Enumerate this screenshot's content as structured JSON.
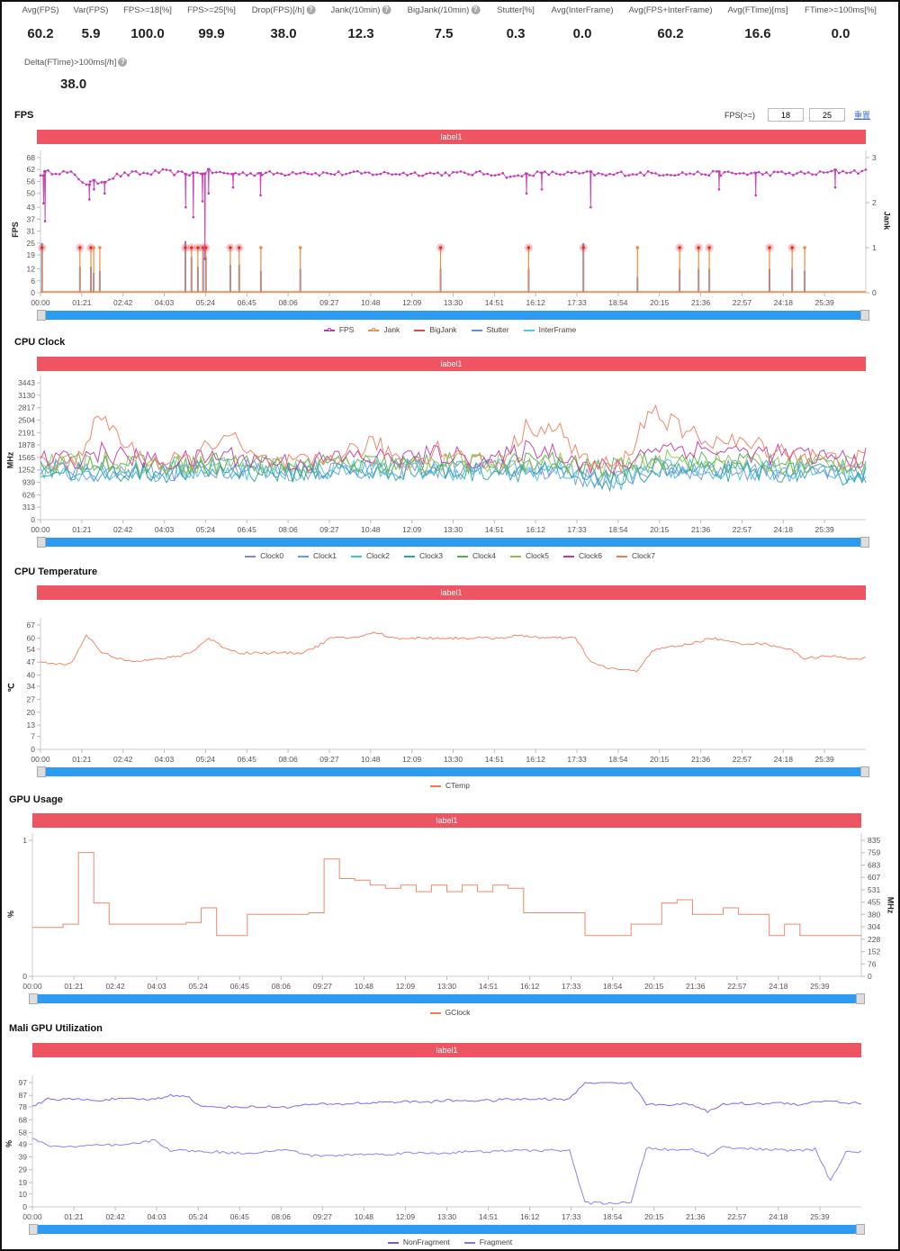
{
  "stats": [
    {
      "label": "Avg(FPS)",
      "value": "60.2",
      "help": false
    },
    {
      "label": "Var(FPS)",
      "value": "5.9",
      "help": false
    },
    {
      "label": "FPS>=18[%]",
      "value": "100.0",
      "help": false
    },
    {
      "label": "FPS>=25[%]",
      "value": "99.9",
      "help": false
    },
    {
      "label": "Drop(FPS)[/h]",
      "value": "38.0",
      "help": true
    },
    {
      "label": "Jank(/10min)",
      "value": "12.3",
      "help": true
    },
    {
      "label": "BigJank(/10min)",
      "value": "7.5",
      "help": true
    },
    {
      "label": "Stutter[%]",
      "value": "0.3",
      "help": false
    },
    {
      "label": "Avg(InterFrame)",
      "value": "0.0",
      "help": false
    },
    {
      "label": "Avg(FPS+InterFrame)",
      "value": "60.2",
      "help": false
    },
    {
      "label": "Avg(FTime)[ms]",
      "value": "16.6",
      "help": false
    },
    {
      "label": "FTime>=100ms[%]",
      "value": "0.0",
      "help": false
    },
    {
      "label": "Delta(FTime)>100ms[/h]",
      "value": "38.0",
      "help": true
    }
  ],
  "help_glyph": "?",
  "fps_filter": {
    "label": "FPS(>=)",
    "value1": "18",
    "value2": "25",
    "reset": "重置"
  },
  "label_bar": "label1",
  "x_ticks": [
    "00:00",
    "01:21",
    "02:42",
    "04:03",
    "05:24",
    "06:45",
    "08:06",
    "09:27",
    "10:48",
    "12:09",
    "13:30",
    "14:51",
    "16:12",
    "17:33",
    "18:54",
    "20:15",
    "21:36",
    "22:57",
    "24:18",
    "25:39"
  ],
  "x_max_min": 27,
  "chart_data": [
    {
      "id": "fps",
      "title": "FPS",
      "type": "line",
      "ylabel": "FPS",
      "ylabel_right": "Jank",
      "ylim": [
        0,
        68
      ],
      "ylim_right": [
        0,
        3
      ],
      "y_ticks": [
        "0",
        "6",
        "12",
        "19",
        "25",
        "31",
        "37",
        "43",
        "50",
        "56",
        "62",
        "68"
      ],
      "y_ticks_right": [
        "0",
        "1",
        "2",
        "3"
      ],
      "x_step": 0.5,
      "series": [
        {
          "name": "FPS",
          "color": "#c23aae",
          "marker": true,
          "values": [
            60,
            61,
            60,
            55,
            56,
            59,
            60,
            60,
            61,
            60,
            60,
            61,
            60,
            60,
            60,
            60,
            60,
            61,
            60,
            60,
            60,
            60,
            60,
            60,
            60,
            60,
            60,
            60,
            60,
            60,
            60,
            58,
            60,
            60,
            60,
            60,
            60,
            59,
            60,
            60,
            60,
            60,
            60,
            60,
            60,
            60,
            60,
            60,
            60,
            60,
            60,
            60,
            61,
            61,
            61
          ]
        },
        {
          "name": "Jank",
          "color": "#f5883a",
          "marker": true
        },
        {
          "name": "BigJank",
          "color": "#e84545"
        },
        {
          "name": "Stutter",
          "color": "#5b8ff0"
        },
        {
          "name": "InterFrame",
          "color": "#3fd0ea"
        }
      ],
      "fps_dips": [
        [
          0.1,
          45
        ],
        [
          0.15,
          36
        ],
        [
          1.6,
          47
        ],
        [
          1.75,
          52
        ],
        [
          2.1,
          50
        ],
        [
          4.75,
          43
        ],
        [
          5.0,
          38
        ],
        [
          5.3,
          46
        ],
        [
          5.38,
          17
        ],
        [
          5.5,
          50
        ],
        [
          6.3,
          53
        ],
        [
          7.2,
          49
        ],
        [
          15.9,
          50
        ],
        [
          16.4,
          52
        ],
        [
          18.0,
          43
        ],
        [
          22.2,
          52
        ],
        [
          23.4,
          49
        ],
        [
          26.0,
          53
        ]
      ],
      "jank_events": [
        {
          "t": 0.05,
          "jank": 1,
          "big": true,
          "stutter": 25
        },
        {
          "t": 1.29,
          "jank": 1,
          "big": true,
          "stutter": 13
        },
        {
          "t": 1.65,
          "jank": 1,
          "big": true,
          "stutter": 13
        },
        {
          "t": 1.74,
          "jank": 1,
          "big": false,
          "stutter": 10
        },
        {
          "t": 1.94,
          "jank": 1,
          "big": false,
          "stutter": 11
        },
        {
          "t": 4.74,
          "jank": 1,
          "big": true,
          "stutter": 26
        },
        {
          "t": 4.94,
          "jank": 1,
          "big": true,
          "stutter": 18
        },
        {
          "t": 5.15,
          "jank": 1,
          "big": true,
          "stutter": 13
        },
        {
          "t": 5.32,
          "jank": 1,
          "big": true,
          "stutter": 23
        },
        {
          "t": 5.41,
          "jank": 1,
          "big": true,
          "stutter": 18
        },
        {
          "t": 6.21,
          "jank": 1,
          "big": true,
          "stutter": 14
        },
        {
          "t": 6.5,
          "jank": 1,
          "big": true,
          "stutter": 14
        },
        {
          "t": 7.21,
          "jank": 1,
          "big": false,
          "stutter": 11
        },
        {
          "t": 8.5,
          "jank": 1,
          "big": false,
          "stutter": 12
        },
        {
          "t": 13.09,
          "jank": 1,
          "big": true,
          "stutter": 12
        },
        {
          "t": 15.97,
          "jank": 1,
          "big": true,
          "stutter": 12
        },
        {
          "t": 17.76,
          "jank": 1,
          "big": true,
          "stutter": 25
        },
        {
          "t": 19.53,
          "jank": 1,
          "big": false,
          "stutter": 8
        },
        {
          "t": 20.91,
          "jank": 1,
          "big": true,
          "stutter": 12
        },
        {
          "t": 21.53,
          "jank": 1,
          "big": true,
          "stutter": 12
        },
        {
          "t": 21.88,
          "jank": 1,
          "big": true,
          "stutter": 12
        },
        {
          "t": 23.85,
          "jank": 1,
          "big": true,
          "stutter": 12
        },
        {
          "t": 24.59,
          "jank": 1,
          "big": true,
          "stutter": 12
        },
        {
          "t": 25.0,
          "jank": 1,
          "big": false,
          "stutter": 11
        }
      ]
    },
    {
      "id": "clock",
      "title": "CPU Clock",
      "type": "line",
      "ylabel": "MHz",
      "ylim": [
        0,
        3443
      ],
      "y_ticks": [
        "0",
        "313",
        "626",
        "939",
        "1252",
        "1565",
        "1878",
        "2191",
        "2504",
        "2817",
        "3130",
        "3443"
      ],
      "x_step": 1,
      "series": [
        {
          "name": "Clock0",
          "color": "#7b8bd6",
          "values": [
            1300,
            1250,
            1200,
            1250,
            1200,
            1250,
            1300,
            1250,
            1200,
            1250,
            1300,
            1250,
            1300,
            1250,
            1250,
            1300,
            1250,
            1250,
            1000,
            1000,
            1300,
            1250,
            1250,
            1250,
            1250,
            1200,
            1150,
            1150
          ]
        },
        {
          "name": "Clock1",
          "color": "#5b9cf0",
          "values": [
            1300,
            1250,
            1200,
            1250,
            1200,
            1250,
            1300,
            1250,
            1200,
            1250,
            1300,
            1250,
            1300,
            1250,
            1250,
            1300,
            1250,
            1250,
            1000,
            1000,
            1300,
            1250,
            1250,
            1250,
            1250,
            1200,
            1150,
            1150
          ]
        },
        {
          "name": "Clock2",
          "color": "#3fbfd8",
          "values": [
            1280,
            1230,
            1220,
            1240,
            1210,
            1260,
            1280,
            1240,
            1210,
            1240,
            1290,
            1260,
            1280,
            1240,
            1260,
            1290,
            1240,
            1240,
            1000,
            1000,
            1290,
            1260,
            1240,
            1260,
            1240,
            1210,
            1160,
            1160
          ]
        },
        {
          "name": "Clock3",
          "color": "#26a69a",
          "values": [
            1250,
            1200,
            1180,
            1200,
            1180,
            1200,
            1250,
            1200,
            1180,
            1200,
            1250,
            1200,
            1250,
            1200,
            1200,
            1250,
            1200,
            1200,
            980,
            980,
            1250,
            1200,
            1200,
            1200,
            1200,
            1180,
            1120,
            1120
          ]
        },
        {
          "name": "Clock4",
          "color": "#4caf50",
          "values": [
            1400,
            1400,
            1500,
            1400,
            1350,
            1400,
            1450,
            1400,
            1350,
            1350,
            1450,
            1400,
            1400,
            1450,
            1400,
            1400,
            1500,
            1450,
            1300,
            1300,
            1500,
            1500,
            1450,
            1450,
            1400,
            1400,
            1400,
            1400
          ]
        },
        {
          "name": "Clock5",
          "color": "#8bc34a",
          "values": [
            1400,
            1400,
            1500,
            1400,
            1350,
            1400,
            1450,
            1400,
            1350,
            1350,
            1450,
            1400,
            1400,
            1450,
            1400,
            1400,
            1500,
            1450,
            1300,
            1300,
            1500,
            1500,
            1450,
            1450,
            1400,
            1400,
            1400,
            1400
          ]
        },
        {
          "name": "Clock6",
          "color": "#c0399f",
          "values": [
            1500,
            1500,
            1700,
            1550,
            1450,
            1500,
            1650,
            1500,
            1450,
            1450,
            1600,
            1550,
            1550,
            1650,
            1550,
            1500,
            1800,
            1700,
            1300,
            1300,
            1850,
            1800,
            1750,
            1700,
            1650,
            1600,
            1550,
            1550
          ]
        },
        {
          "name": "Clock7",
          "color": "#ef7a5a",
          "values": [
            1400,
            1400,
            2600,
            1700,
            1400,
            1500,
            2200,
            1500,
            1400,
            1400,
            1700,
            1900,
            1400,
            1800,
            1500,
            1400,
            2400,
            2200,
            1350,
            1350,
            2800,
            2200,
            2000,
            1900,
            1800,
            1600,
            1500,
            1500
          ]
        }
      ]
    },
    {
      "id": "temp",
      "title": "CPU Temperature",
      "type": "line",
      "ylabel": "℃",
      "ylim": [
        0,
        67
      ],
      "y_ticks": [
        "0",
        "7",
        "13",
        "20",
        "27",
        "34",
        "40",
        "47",
        "54",
        "60",
        "67"
      ],
      "x_step": 0.5,
      "series": [
        {
          "name": "CTemp",
          "color": "#ef7a5a",
          "values": [
            47,
            46,
            46,
            62,
            52,
            49,
            48,
            48,
            49,
            50,
            53,
            60,
            55,
            52,
            52,
            52,
            52,
            52,
            55,
            60,
            60,
            61,
            63,
            60,
            60,
            60,
            60,
            60,
            60,
            60,
            60,
            61,
            61,
            60,
            60,
            60,
            47,
            44,
            43,
            42,
            53,
            55,
            56,
            58,
            60,
            58,
            57,
            57,
            56,
            54,
            49,
            50,
            50,
            49,
            49
          ]
        }
      ]
    },
    {
      "id": "gpu",
      "title": "GPU Usage",
      "type": "line",
      "ylabel": "%",
      "ylabel_right": "MHz",
      "ylim": [
        0,
        1
      ],
      "ylim_right": [
        0,
        835
      ],
      "y_ticks": [
        "0",
        "1"
      ],
      "y_ticks_right": [
        "0",
        "76",
        "152",
        "228",
        "304",
        "380",
        "455",
        "531",
        "607",
        "683",
        "759",
        "835"
      ],
      "x_step": 0.5,
      "series": [
        {
          "name": "GClock",
          "color": "#ef7a5a",
          "axis": "right",
          "values": [
            300,
            300,
            320,
            760,
            450,
            320,
            320,
            320,
            320,
            320,
            330,
            420,
            250,
            250,
            380,
            380,
            380,
            380,
            390,
            720,
            600,
            590,
            560,
            540,
            560,
            520,
            560,
            520,
            560,
            520,
            560,
            540,
            390,
            390,
            390,
            390,
            250,
            250,
            250,
            320,
            320,
            450,
            470,
            380,
            380,
            420,
            380,
            380,
            250,
            320,
            250,
            250,
            250,
            250,
            250
          ]
        }
      ]
    },
    {
      "id": "mali",
      "title": "Mali GPU Utilization",
      "type": "line",
      "ylabel": "%",
      "ylim": [
        0,
        97
      ],
      "y_ticks": [
        "0",
        "10",
        "19",
        "29",
        "39",
        "49",
        "58",
        "68",
        "78",
        "87",
        "97"
      ],
      "x_step": 0.5,
      "series": [
        {
          "name": "NonFragment",
          "color": "#6a5cf0",
          "values": [
            78,
            84,
            84,
            84,
            83,
            84,
            84,
            84,
            84,
            87,
            87,
            78,
            78,
            78,
            78,
            78,
            78,
            78,
            80,
            80,
            80,
            81,
            81,
            82,
            82,
            82,
            82,
            83,
            83,
            83,
            83,
            84,
            84,
            84,
            84,
            84,
            97,
            97,
            97,
            97,
            80,
            80,
            80,
            80,
            74,
            80,
            81,
            80,
            81,
            81,
            80,
            82,
            83,
            81,
            81
          ]
        },
        {
          "name": "Fragment",
          "color": "#7b78f5",
          "values": [
            53,
            48,
            47,
            47,
            48,
            48,
            48,
            50,
            52,
            44,
            44,
            43,
            43,
            42,
            42,
            43,
            44,
            44,
            40,
            40,
            40,
            41,
            41,
            41,
            42,
            42,
            42,
            42,
            43,
            43,
            43,
            44,
            44,
            44,
            44,
            44,
            3,
            3,
            3,
            3,
            46,
            45,
            44,
            45,
            40,
            47,
            46,
            45,
            45,
            44,
            44,
            45,
            20,
            43,
            43
          ]
        }
      ]
    }
  ]
}
